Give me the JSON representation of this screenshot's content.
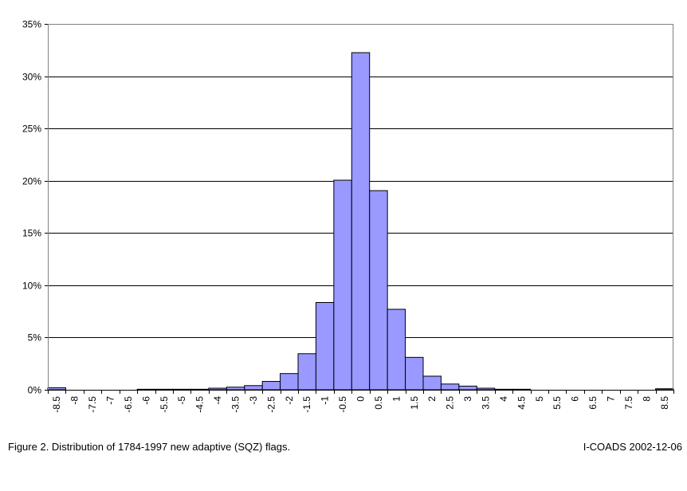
{
  "chart_data": {
    "type": "bar",
    "title": "",
    "xlabel": "",
    "ylabel": "",
    "ylim": [
      0,
      35
    ],
    "yticks": [
      "0%",
      "5%",
      "10%",
      "15%",
      "20%",
      "25%",
      "30%",
      "35%"
    ],
    "grid": true,
    "legend": "none",
    "bar_color": "#9999ff",
    "categories": [
      "-8.5",
      "-8",
      "-7.5",
      "-7",
      "-6.5",
      "-6",
      "-5.5",
      "-5",
      "-4.5",
      "-4",
      "-3.5",
      "-3",
      "-2.5",
      "-2",
      "-1.5",
      "-1",
      "-0.5",
      "0",
      "0.5",
      "1",
      "1.5",
      "2",
      "2.5",
      "3",
      "3.5",
      "4",
      "4.5",
      "5",
      "5.5",
      "6",
      "6.5",
      "7",
      "7.5",
      "8",
      "8.5"
    ],
    "series": [
      {
        "values": [
          0.2,
          0,
          0,
          0,
          0,
          0.05,
          0.05,
          0.05,
          0.05,
          0.15,
          0.25,
          0.4,
          0.8,
          1.55,
          3.45,
          8.35,
          20.05,
          32.25,
          19.05,
          7.7,
          3.1,
          1.3,
          0.55,
          0.35,
          0.15,
          0.05,
          0.05,
          0,
          0,
          0,
          0,
          0,
          0,
          0,
          0.1
        ]
      }
    ]
  },
  "caption": {
    "left": "Figure 2.  Distribution of 1784-1997 new adaptive (SQZ) flags.",
    "right": "I-COADS 2002-12-06"
  }
}
